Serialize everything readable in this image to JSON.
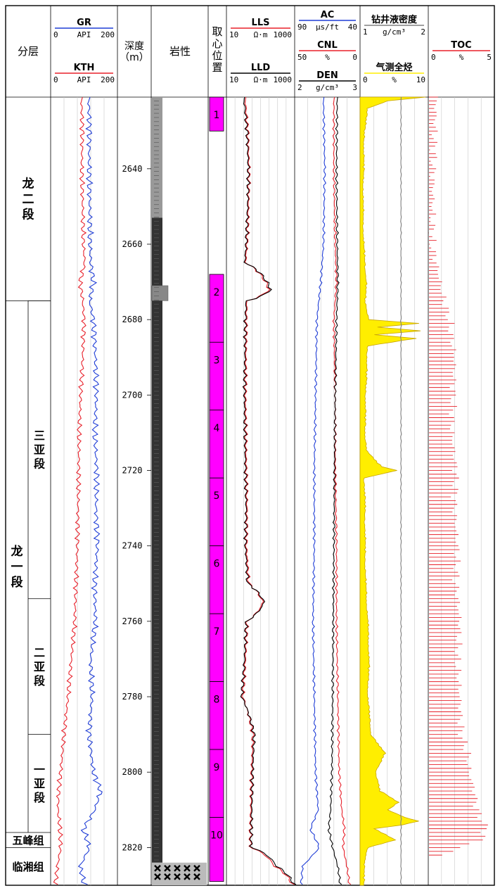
{
  "chart_data": {
    "type": "line",
    "title": "",
    "xlabel": "",
    "ylabel": "",
    "ylim": [
      2621,
      2830
    ],
    "depth_header": "深度\n（m）",
    "depth_ticks": [
      2640,
      2660,
      2680,
      2700,
      2720,
      2740,
      2760,
      2780,
      2800,
      2820
    ],
    "columns": {
      "strata": {
        "header": "分层"
      },
      "gamma": {
        "curves": [
          {
            "name": "GR",
            "scale_min": "0",
            "unit": "API",
            "scale_max": "200",
            "color": "#1f3dd6"
          },
          {
            "name": "KTH",
            "scale_min": "0",
            "unit": "API",
            "scale_max": "200",
            "color": "#e8202a"
          }
        ]
      },
      "lithology": {
        "header": "岩性"
      },
      "core": {
        "header": "取心位置"
      },
      "resistivity": {
        "curves": [
          {
            "name": "LLS",
            "scale_min": "10",
            "unit": "Ω·m",
            "scale_max": "1000",
            "color": "#e8202a"
          },
          {
            "name": "LLD",
            "scale_min": "10",
            "unit": "Ω·m",
            "scale_max": "1000",
            "color": "#000000"
          }
        ]
      },
      "porosity": {
        "curves": [
          {
            "name": "AC",
            "scale_min": "90",
            "unit": "μs/ft",
            "scale_max": "40",
            "color": "#1f3dd6"
          },
          {
            "name": "CNL",
            "scale_min": "50",
            "unit": "%",
            "scale_max": "0",
            "color": "#e8202a"
          },
          {
            "name": "DEN",
            "scale_min": "2",
            "unit": "g/cm³",
            "scale_max": "3",
            "color": "#000000"
          }
        ]
      },
      "mud_gas": {
        "curves": [
          {
            "name": "钻井液密度",
            "scale_min": "1",
            "unit": "g/cm³",
            "scale_max": "2",
            "color": "#808080"
          },
          {
            "name": "气测全烃",
            "scale_min": "0",
            "unit": "%",
            "scale_max": "10",
            "color": "#ffee00"
          }
        ]
      },
      "toc": {
        "curves": [
          {
            "name": "TOC",
            "scale_min": "0",
            "unit": "%",
            "scale_max": "5",
            "color": "#e8202a"
          }
        ]
      }
    },
    "formations": [
      {
        "name": "龙二段",
        "top": 2621,
        "base": 2675
      },
      {
        "name": "龙一段",
        "top": 2675,
        "base": 2816
      },
      {
        "name": "五峰组",
        "top": 2816,
        "base": 2820
      },
      {
        "name": "临湘组",
        "top": 2820,
        "base": 2830
      }
    ],
    "sub_members": [
      {
        "name": "三亚段",
        "top": 2675,
        "base": 2754
      },
      {
        "name": "二亚段",
        "top": 2754,
        "base": 2790
      },
      {
        "name": "一亚段",
        "top": 2790,
        "base": 2816
      }
    ],
    "lithology_intervals": [
      {
        "top": 2621,
        "base": 2653,
        "type": "silty_mudstone",
        "color": "#999999"
      },
      {
        "top": 2653,
        "base": 2671,
        "type": "shale",
        "color": "#333333"
      },
      {
        "top": 2671,
        "base": 2675,
        "type": "siltstone",
        "color": "#888888"
      },
      {
        "top": 2675,
        "base": 2824,
        "type": "shale",
        "color": "#333333"
      },
      {
        "top": 2824,
        "base": 2830,
        "type": "limestone",
        "color": "#bbbbbb"
      }
    ],
    "core_runs": [
      {
        "label": "1",
        "top": 2621,
        "base": 2630
      },
      {
        "label": "2",
        "top": 2668,
        "base": 2686
      },
      {
        "label": "3",
        "top": 2686,
        "base": 2704
      },
      {
        "label": "4",
        "top": 2704,
        "base": 2722
      },
      {
        "label": "5",
        "top": 2722,
        "base": 2740
      },
      {
        "label": "6",
        "top": 2740,
        "base": 2758
      },
      {
        "label": "7",
        "top": 2758,
        "base": 2776
      },
      {
        "label": "8",
        "top": 2776,
        "base": 2794
      },
      {
        "label": "9",
        "top": 2794,
        "base": 2812
      },
      {
        "label": "10",
        "top": 2812,
        "base": 2829
      }
    ],
    "series": [
      {
        "name": "GR",
        "x": [
          2621,
          2630,
          2640,
          2650,
          2660,
          2665,
          2670,
          2675,
          2680,
          2690,
          2700,
          2710,
          2720,
          2730,
          2740,
          2750,
          2760,
          2770,
          2780,
          2790,
          2800,
          2805,
          2810,
          2815,
          2820,
          2825,
          2830
        ],
        "values": [
          114,
          116,
          115,
          117,
          118,
          120,
          128,
          117,
          128,
          134,
          137,
          132,
          138,
          136,
          140,
          132,
          134,
          120,
          124,
          115,
          128,
          150,
          132,
          98,
          116,
          88,
          102
        ]
      },
      {
        "name": "KTH",
        "x": [
          2621,
          2630,
          2640,
          2650,
          2660,
          2665,
          2670,
          2675,
          2680,
          2690,
          2700,
          2710,
          2720,
          2730,
          2740,
          2750,
          2760,
          2770,
          2780,
          2790,
          2800,
          2805,
          2810,
          2815,
          2820,
          2825,
          2830
        ],
        "values": [
          92,
          95,
          93,
          96,
          98,
          102,
          88,
          96,
          100,
          96,
          90,
          85,
          84,
          82,
          80,
          76,
          72,
          62,
          52,
          40,
          30,
          24,
          22,
          28,
          30,
          20,
          14
        ]
      },
      {
        "name": "LLS",
        "x": [
          2621,
          2630,
          2640,
          2650,
          2660,
          2665,
          2672,
          2675,
          2680,
          2690,
          2700,
          2710,
          2720,
          2730,
          2740,
          2750,
          2755,
          2760,
          2770,
          2780,
          2790,
          2800,
          2810,
          2820,
          2825,
          2830
        ],
        "values": [
          35,
          42,
          46,
          44,
          40,
          36,
          180,
          40,
          38,
          37,
          36,
          37,
          38,
          40,
          38,
          45,
          120,
          40,
          36,
          30,
          60,
          55,
          52,
          50,
          260,
          900
        ]
      },
      {
        "name": "LLD",
        "x": [
          2621,
          2630,
          2640,
          2650,
          2660,
          2665,
          2672,
          2675,
          2680,
          2690,
          2700,
          2710,
          2720,
          2730,
          2740,
          2750,
          2755,
          2760,
          2770,
          2780,
          2790,
          2800,
          2810,
          2820,
          2825,
          2830
        ],
        "values": [
          32,
          40,
          44,
          42,
          38,
          34,
          200,
          38,
          36,
          35,
          34,
          35,
          36,
          38,
          36,
          42,
          130,
          38,
          34,
          28,
          65,
          58,
          55,
          52,
          300,
          1000
        ]
      },
      {
        "name": "AC",
        "x": [
          2621,
          2640,
          2660,
          2670,
          2680,
          2700,
          2720,
          2740,
          2760,
          2780,
          2800,
          2810,
          2815,
          2820,
          2825,
          2830
        ],
        "values": [
          68,
          67,
          68,
          70,
          73,
          74,
          75,
          75,
          76,
          75,
          74,
          72,
          78,
          71,
          84,
          85
        ]
      },
      {
        "name": "CNL",
        "x": [
          2621,
          2640,
          2660,
          2670,
          2680,
          2700,
          2720,
          2740,
          2760,
          2780,
          2800,
          2810,
          2815,
          2820,
          2825,
          2830
        ],
        "values": [
          20,
          20,
          19,
          18,
          20,
          19,
          19,
          18,
          18,
          17,
          16,
          14,
          12,
          13,
          10,
          8
        ]
      },
      {
        "name": "DEN",
        "x": [
          2621,
          2640,
          2660,
          2670,
          2680,
          2700,
          2720,
          2740,
          2760,
          2780,
          2800,
          2810,
          2815,
          2820,
          2825,
          2830
        ],
        "values": [
          2.65,
          2.64,
          2.65,
          2.66,
          2.64,
          2.62,
          2.61,
          2.6,
          2.59,
          2.58,
          2.57,
          2.55,
          2.52,
          2.58,
          2.66,
          2.7
        ]
      },
      {
        "name": "钻井液密度",
        "x": [
          2621,
          2660,
          2700,
          2740,
          2780,
          2810,
          2830
        ],
        "values": [
          1.6,
          1.6,
          1.6,
          1.6,
          1.6,
          1.6,
          1.6
        ]
      },
      {
        "name": "气测全烃",
        "x": [
          2621,
          2622,
          2624,
          2630,
          2650,
          2660,
          2670,
          2675,
          2680,
          2681,
          2682,
          2683,
          2684,
          2685,
          2687,
          2690,
          2700,
          2710,
          2715,
          2719,
          2720,
          2722,
          2730,
          2740,
          2750,
          2760,
          2770,
          2780,
          2790,
          2795,
          2800,
          2805,
          2808,
          2810,
          2812,
          2813,
          2814,
          2815,
          2818,
          2820,
          2825,
          2830
        ],
        "values": [
          9.5,
          4.0,
          1.0,
          0.5,
          0.3,
          0.4,
          0.8,
          0.6,
          1.2,
          8.5,
          2.5,
          8.8,
          2.0,
          8.0,
          1.0,
          0.9,
          0.7,
          0.6,
          0.9,
          3.0,
          5.3,
          0.5,
          0.6,
          0.6,
          0.7,
          1.0,
          1.2,
          1.0,
          1.5,
          3.5,
          2.2,
          2.8,
          5.5,
          4.0,
          6.5,
          8.5,
          6.0,
          2.0,
          5.0,
          1.0,
          0.5,
          0.4
        ]
      },
      {
        "name": "TOC",
        "x": [
          2621,
          2640,
          2660,
          2668,
          2670,
          2675,
          2680,
          2690,
          2700,
          2710,
          2720,
          2730,
          2740,
          2750,
          2760,
          2770,
          2780,
          2790,
          2795,
          2800,
          2805,
          2810,
          2815,
          2818,
          2822
        ],
        "values": [
          0.6,
          0.4,
          0.3,
          0.8,
          0.9,
          1.2,
          1.6,
          2.0,
          1.9,
          1.8,
          2.1,
          2.0,
          2.2,
          2.1,
          2.4,
          2.2,
          2.4,
          2.5,
          3.0,
          3.1,
          3.5,
          3.7,
          4.4,
          4.0,
          1.0
        ]
      }
    ]
  }
}
